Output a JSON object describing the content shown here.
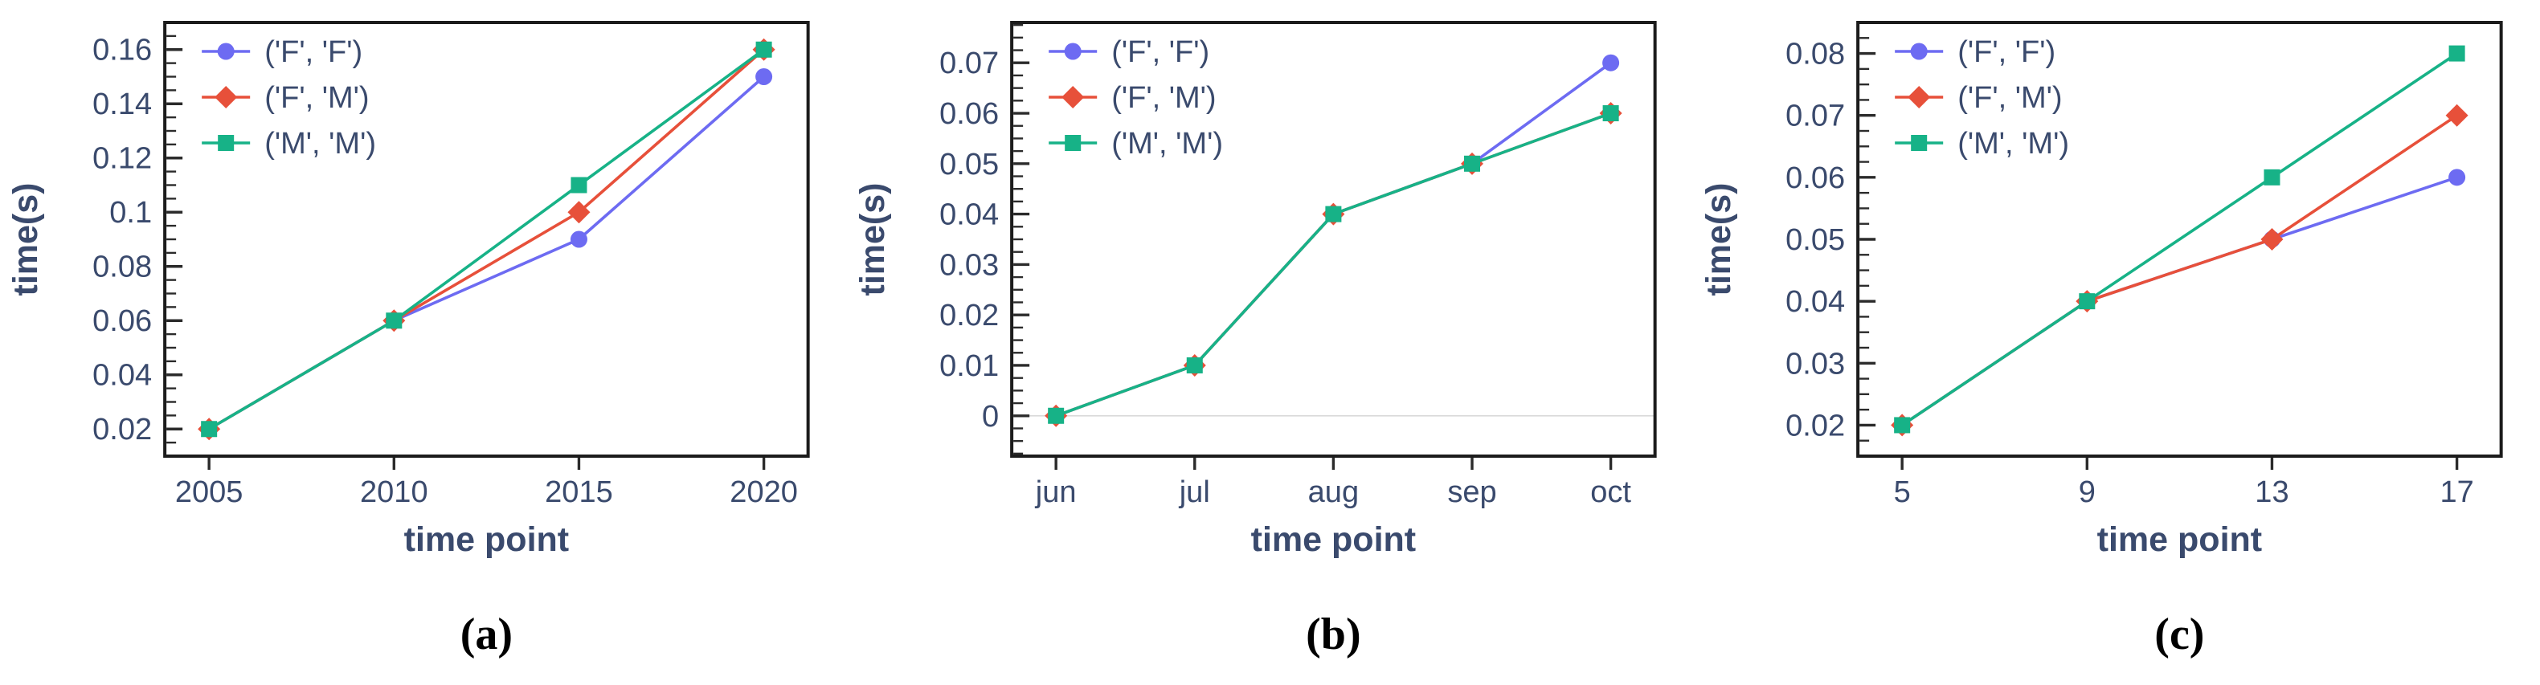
{
  "style": {
    "text_color": "#3a4a6d",
    "spine_color": "#1c1c1c",
    "tick_color": "#2b2b2b",
    "zero_line_color": "#d9d9d9",
    "background": "#ffffff",
    "series_colors": {
      "ff": "#6d6bf2",
      "fm": "#e7503a",
      "mm": "#17b287"
    }
  },
  "chart_data": [
    {
      "type": "line",
      "caption": "(a)",
      "xlabel": "time point",
      "ylabel": "time(s)",
      "categories": [
        "2005",
        "2010",
        "2015",
        "2020"
      ],
      "series": [
        {
          "name": "('F', 'F')",
          "marker": "circle",
          "color": "#6d6bf2",
          "values": [
            0.02,
            0.06,
            0.09,
            0.15
          ]
        },
        {
          "name": "('F', 'M')",
          "marker": "diamond",
          "color": "#e7503a",
          "values": [
            0.02,
            0.06,
            0.1,
            0.16
          ]
        },
        {
          "name": "('M', 'M')",
          "marker": "square",
          "color": "#17b287",
          "values": [
            0.02,
            0.06,
            0.11,
            0.16
          ]
        }
      ],
      "yticks": [
        0.02,
        0.04,
        0.06,
        0.08,
        0.1,
        0.12,
        0.14,
        0.16
      ],
      "ytick_labels": [
        "0.02",
        "0.04",
        "0.06",
        "0.08",
        "0.1",
        "0.12",
        "0.14",
        "0.16"
      ],
      "ylim": [
        0.01,
        0.17
      ],
      "minor_step": 0.005,
      "grid": false,
      "zero_line": false,
      "legend_position": "upper left"
    },
    {
      "type": "line",
      "caption": "(b)",
      "xlabel": "time point",
      "ylabel": "time(s)",
      "categories": [
        "jun",
        "jul",
        "aug",
        "sep",
        "oct"
      ],
      "series": [
        {
          "name": "('F', 'F')",
          "marker": "circle",
          "color": "#6d6bf2",
          "values": [
            0.0,
            0.01,
            0.04,
            0.05,
            0.07
          ]
        },
        {
          "name": "('F', 'M')",
          "marker": "diamond",
          "color": "#e7503a",
          "values": [
            0.0,
            0.01,
            0.04,
            0.05,
            0.06
          ]
        },
        {
          "name": "('M', 'M')",
          "marker": "square",
          "color": "#17b287",
          "values": [
            0.0,
            0.01,
            0.04,
            0.05,
            0.06
          ]
        }
      ],
      "yticks": [
        0,
        0.01,
        0.02,
        0.03,
        0.04,
        0.05,
        0.06,
        0.07
      ],
      "ytick_labels": [
        "0",
        "0.01",
        "0.02",
        "0.03",
        "0.04",
        "0.05",
        "0.06",
        "0.07"
      ],
      "ylim": [
        -0.008,
        0.078
      ],
      "minor_step": 0.0025,
      "grid": false,
      "zero_line": true,
      "legend_position": "upper left"
    },
    {
      "type": "line",
      "caption": "(c)",
      "xlabel": "time point",
      "ylabel": "time(s)",
      "categories": [
        "5",
        "9",
        "13",
        "17"
      ],
      "series": [
        {
          "name": "('F', 'F')",
          "marker": "circle",
          "color": "#6d6bf2",
          "values": [
            0.02,
            0.04,
            0.05,
            0.06
          ]
        },
        {
          "name": "('F', 'M')",
          "marker": "diamond",
          "color": "#e7503a",
          "values": [
            0.02,
            0.04,
            0.05,
            0.07
          ]
        },
        {
          "name": "('M', 'M')",
          "marker": "square",
          "color": "#17b287",
          "values": [
            0.02,
            0.04,
            0.06,
            0.08
          ]
        }
      ],
      "yticks": [
        0.02,
        0.03,
        0.04,
        0.05,
        0.06,
        0.07,
        0.08
      ],
      "ytick_labels": [
        "0.02",
        "0.03",
        "0.04",
        "0.05",
        "0.06",
        "0.07",
        "0.08"
      ],
      "ylim": [
        0.015,
        0.085
      ],
      "minor_step": 0.0025,
      "grid": false,
      "zero_line": false,
      "legend_position": "upper left"
    }
  ]
}
